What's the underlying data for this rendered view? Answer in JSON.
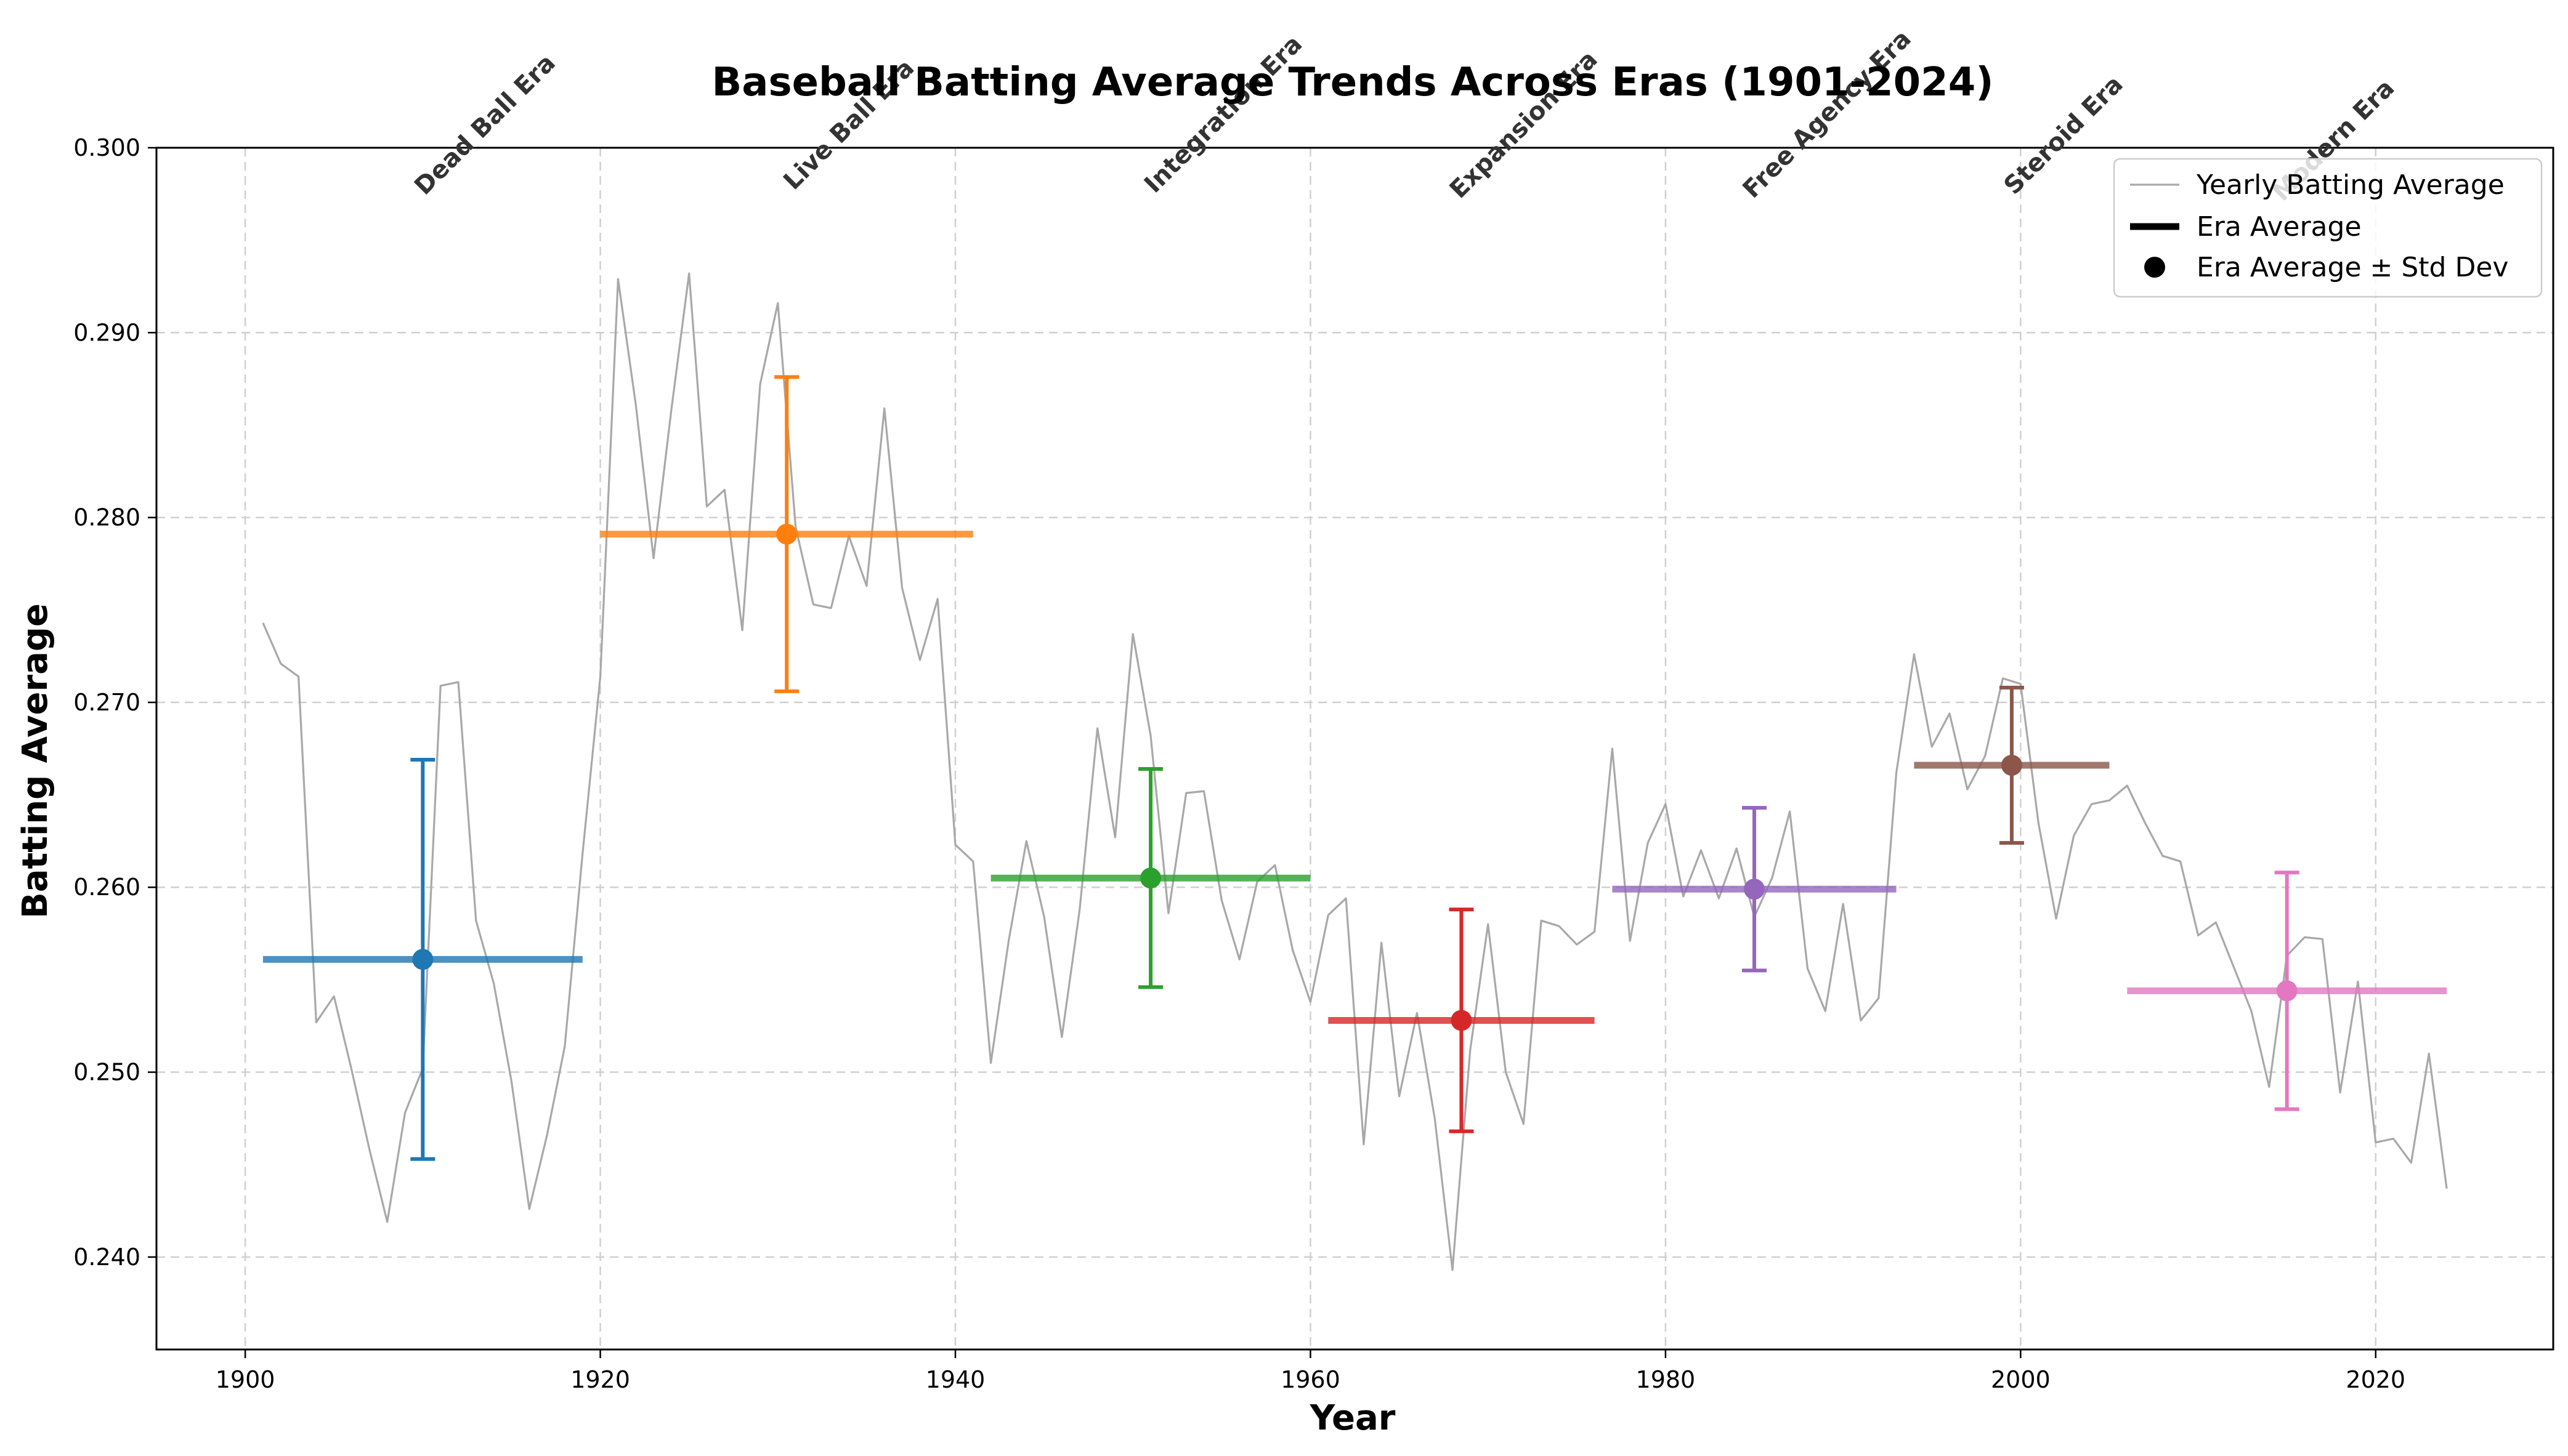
{
  "chart_data": {
    "type": "line",
    "title": "Baseball Batting Average Trends Across Eras (1901-2024)",
    "xlabel": "Year",
    "ylabel": "Batting Average",
    "xlim": [
      1895,
      2030
    ],
    "ylim": [
      0.235,
      0.3
    ],
    "xticks": [
      1900,
      1920,
      1940,
      1960,
      1980,
      2000,
      2020
    ],
    "yticks": [
      0.24,
      0.25,
      0.26,
      0.27,
      0.28,
      0.29,
      0.3
    ],
    "ytick_labels": [
      "0.240",
      "0.250",
      "0.260",
      "0.270",
      "0.280",
      "0.290",
      "0.300"
    ],
    "grid": true,
    "legend_position": "top-right",
    "legend": [
      {
        "label": "Yearly Batting Average",
        "style": "thin-gray-line"
      },
      {
        "label": "Era Average",
        "style": "thick-black-line"
      },
      {
        "label": "Era Average ± Std Dev",
        "style": "black-dot"
      }
    ],
    "yearly_series": {
      "name": "Yearly Batting Average",
      "color": "#a8a8a8",
      "x": [
        1901,
        1902,
        1903,
        1904,
        1905,
        1906,
        1907,
        1908,
        1909,
        1910,
        1911,
        1912,
        1913,
        1914,
        1915,
        1916,
        1917,
        1918,
        1919,
        1920,
        1921,
        1922,
        1923,
        1924,
        1925,
        1926,
        1927,
        1928,
        1929,
        1930,
        1931,
        1932,
        1933,
        1934,
        1935,
        1936,
        1937,
        1938,
        1939,
        1940,
        1941,
        1942,
        1943,
        1944,
        1945,
        1946,
        1947,
        1948,
        1949,
        1950,
        1951,
        1952,
        1953,
        1954,
        1955,
        1956,
        1957,
        1958,
        1959,
        1960,
        1961,
        1962,
        1963,
        1964,
        1965,
        1966,
        1967,
        1968,
        1969,
        1970,
        1971,
        1972,
        1973,
        1974,
        1975,
        1976,
        1977,
        1978,
        1979,
        1980,
        1981,
        1982,
        1983,
        1984,
        1985,
        1986,
        1987,
        1988,
        1989,
        1990,
        1991,
        1992,
        1993,
        1994,
        1995,
        1996,
        1997,
        1998,
        1999,
        2000,
        2001,
        2002,
        2003,
        2004,
        2005,
        2006,
        2007,
        2008,
        2009,
        2010,
        2011,
        2012,
        2013,
        2014,
        2015,
        2016,
        2017,
        2018,
        2019,
        2020,
        2021,
        2022,
        2023,
        2024
      ],
      "y": [
        0.2743,
        0.2721,
        0.2714,
        0.2527,
        0.2541,
        0.2501,
        0.2458,
        0.2419,
        0.2478,
        0.2502,
        0.2709,
        0.2711,
        0.2582,
        0.2548,
        0.2495,
        0.2426,
        0.2466,
        0.2514,
        0.2618,
        0.2714,
        0.2929,
        0.2861,
        0.2778,
        0.2858,
        0.2932,
        0.2806,
        0.2815,
        0.2739,
        0.2872,
        0.2916,
        0.2795,
        0.2753,
        0.2751,
        0.279,
        0.2763,
        0.2859,
        0.2762,
        0.2723,
        0.2756,
        0.2623,
        0.2614,
        0.2505,
        0.2571,
        0.2625,
        0.2584,
        0.2519,
        0.2588,
        0.2686,
        0.2627,
        0.2737,
        0.2682,
        0.2586,
        0.2651,
        0.2652,
        0.2593,
        0.2561,
        0.2603,
        0.2612,
        0.2566,
        0.2538,
        0.2585,
        0.2594,
        0.2461,
        0.257,
        0.2487,
        0.2532,
        0.2475,
        0.2393,
        0.2512,
        0.258,
        0.25,
        0.2472,
        0.2582,
        0.2579,
        0.2569,
        0.2576,
        0.2675,
        0.2571,
        0.2624,
        0.2645,
        0.2595,
        0.262,
        0.2594,
        0.2621,
        0.2584,
        0.2605,
        0.2641,
        0.2556,
        0.2533,
        0.2591,
        0.2528,
        0.254,
        0.2662,
        0.2726,
        0.2676,
        0.2694,
        0.2653,
        0.2671,
        0.2713,
        0.271,
        0.2635,
        0.2583,
        0.2628,
        0.2645,
        0.2647,
        0.2655,
        0.2635,
        0.2617,
        0.2614,
        0.2574,
        0.2581,
        0.2557,
        0.2533,
        0.2492,
        0.2563,
        0.2573,
        0.2572,
        0.2489,
        0.2549,
        0.2462,
        0.2464,
        0.2451,
        0.251,
        0.2437
      ]
    },
    "eras": [
      {
        "name": "Dead Ball Era",
        "start": 1901,
        "end": 1919,
        "mean": 0.2561,
        "std": 0.0108,
        "mid": 1910,
        "color": "#1f77b4"
      },
      {
        "name": "Live Ball Era",
        "start": 1920,
        "end": 1941,
        "mean": 0.2791,
        "std": 0.0085,
        "mid": 1930.5,
        "color": "#ff7f0e"
      },
      {
        "name": "Integration Era",
        "start": 1942,
        "end": 1960,
        "mean": 0.2605,
        "std": 0.0059,
        "mid": 1951,
        "color": "#2ca02c"
      },
      {
        "name": "Expansion Era",
        "start": 1961,
        "end": 1976,
        "mean": 0.2528,
        "std": 0.006,
        "mid": 1968.5,
        "color": "#d62728"
      },
      {
        "name": "Free Agency Era",
        "start": 1977,
        "end": 1993,
        "mean": 0.2599,
        "std": 0.0044,
        "mid": 1985,
        "color": "#9467bd"
      },
      {
        "name": "Steroid Era",
        "start": 1994,
        "end": 2005,
        "mean": 0.2666,
        "std": 0.0042,
        "mid": 1999.5,
        "color": "#8c564b"
      },
      {
        "name": "Modern Era",
        "start": 2006,
        "end": 2024,
        "mean": 0.2544,
        "std": 0.0064,
        "mid": 2015,
        "color": "#e377c2"
      }
    ]
  }
}
